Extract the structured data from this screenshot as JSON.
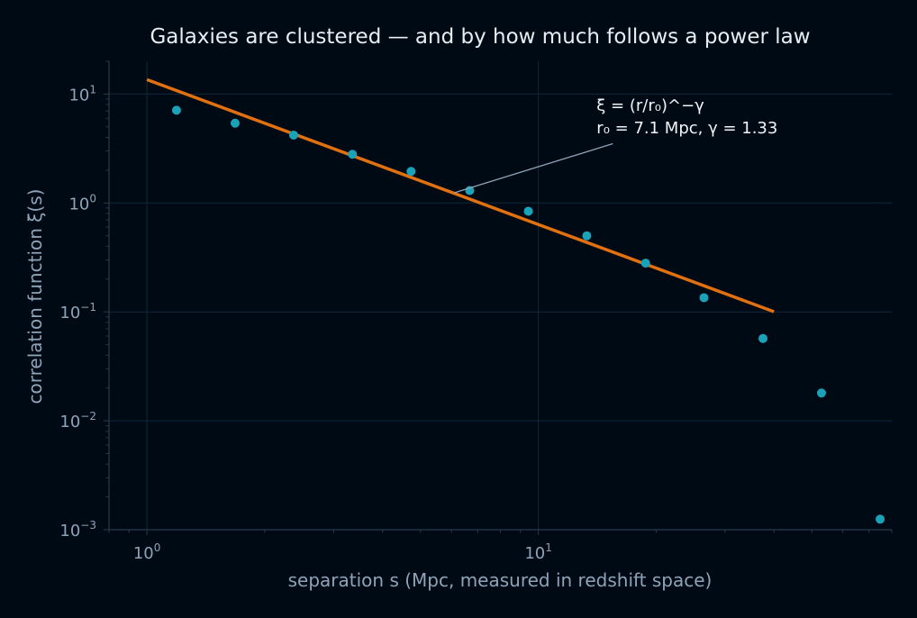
{
  "chart_data": {
    "type": "scatter",
    "title": "Galaxies are clustered — and by how much follows a power law",
    "xlabel": "separation s (Mpc, measured in redshift space)",
    "ylabel": "correlation function ξ(s)",
    "xscale": "log",
    "yscale": "log",
    "xlim": [
      0.8,
      80
    ],
    "ylim": [
      0.001,
      20
    ],
    "x_ticks": [
      {
        "base": "10",
        "exp": "0",
        "value": 1
      },
      {
        "base": "10",
        "exp": "1",
        "value": 10
      }
    ],
    "y_ticks": [
      {
        "base": "10",
        "exp": "1",
        "value": 10
      },
      {
        "base": "10",
        "exp": "0",
        "value": 1
      },
      {
        "base": "10",
        "exp": "−1",
        "value": 0.1
      },
      {
        "base": "10",
        "exp": "−2",
        "value": 0.01
      },
      {
        "base": "10",
        "exp": "−3",
        "value": 0.001
      }
    ],
    "grid": true,
    "series": [
      {
        "kind": "points",
        "color": "#1aa3b8",
        "x": [
          1.19,
          1.68,
          2.37,
          3.35,
          4.73,
          6.68,
          9.43,
          13.3,
          18.8,
          26.5,
          37.5,
          52.9,
          74.7
        ],
        "y": [
          7.1,
          5.4,
          4.2,
          2.8,
          1.95,
          1.3,
          0.84,
          0.5,
          0.28,
          0.135,
          0.057,
          0.018,
          0.00125
        ]
      },
      {
        "kind": "power-law fit",
        "color": "#e07010",
        "r0": 7.1,
        "gamma": 1.33,
        "x_range": [
          1.0,
          40.0
        ]
      }
    ],
    "annotation": {
      "lines": [
        "ξ = (r/r₀)^−γ",
        "r₀ = 7.1 Mpc, γ = 1.33"
      ],
      "points_to": {
        "x": 6.1,
        "y": 1.24
      },
      "text_at": {
        "x": 15.5,
        "y": 3.5
      }
    },
    "colors": {
      "background": "#000a14",
      "grid": "#10283a",
      "spine": "#2a3a4a",
      "text": "#8fa3b8",
      "title": "#e6edf3",
      "annotation_arrow": "#8fa3b8"
    }
  }
}
